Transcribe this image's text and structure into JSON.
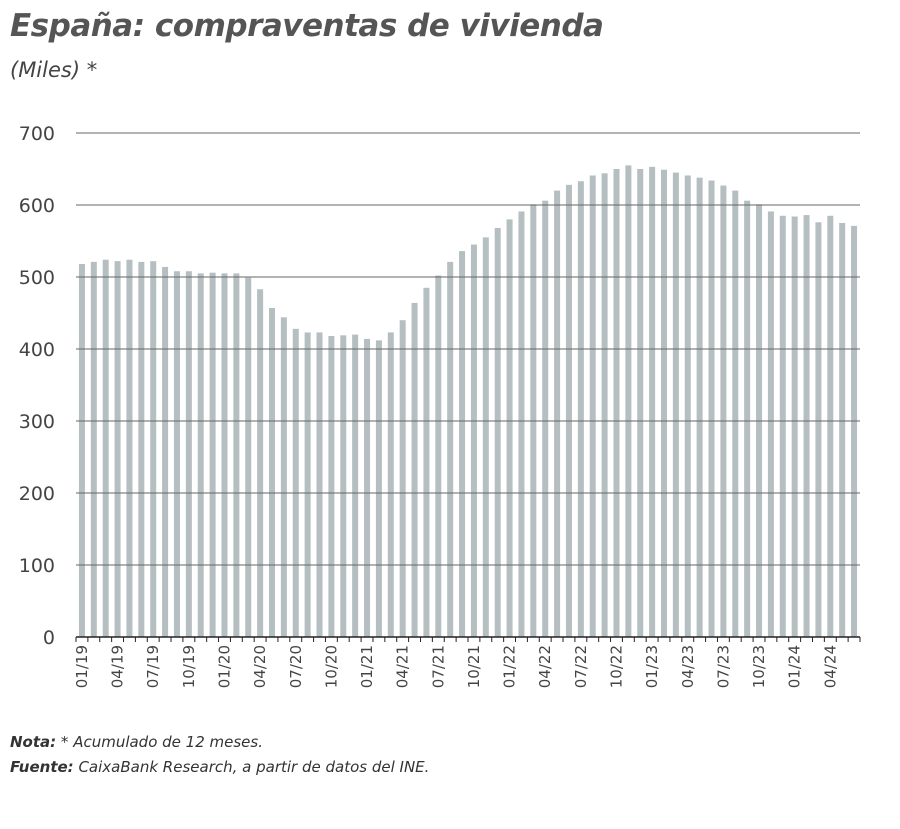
{
  "chart_data": {
    "type": "bar",
    "title": "España: compraventas de vivienda",
    "subtitle": "(Miles) *",
    "ylim": [
      0,
      700
    ],
    "yticks": [
      0,
      100,
      200,
      300,
      400,
      500,
      600,
      700
    ],
    "grid": true,
    "bar_color": "#b5bec0",
    "categories": [
      "01/19",
      "02/19",
      "03/19",
      "04/19",
      "05/19",
      "06/19",
      "07/19",
      "08/19",
      "09/19",
      "10/19",
      "11/19",
      "12/19",
      "01/20",
      "02/20",
      "03/20",
      "04/20",
      "05/20",
      "06/20",
      "07/20",
      "08/20",
      "09/20",
      "10/20",
      "11/20",
      "12/20",
      "01/21",
      "02/21",
      "03/21",
      "04/21",
      "05/21",
      "06/21",
      "07/21",
      "08/21",
      "09/21",
      "10/21",
      "11/21",
      "12/21",
      "01/22",
      "02/22",
      "03/22",
      "04/22",
      "05/22",
      "06/22",
      "07/22",
      "08/22",
      "09/22",
      "10/22",
      "11/22",
      "12/22",
      "01/23",
      "02/23",
      "03/23",
      "04/23",
      "05/23",
      "06/23",
      "07/23",
      "08/23",
      "09/23",
      "10/23",
      "11/23",
      "12/23",
      "01/24",
      "02/24",
      "03/24",
      "04/24",
      "05/24",
      "06/24"
    ],
    "xtick_labels": [
      "01/19",
      "04/19",
      "07/19",
      "10/19",
      "01/20",
      "04/20",
      "07/20",
      "10/20",
      "01/21",
      "04/21",
      "07/21",
      "10/21",
      "01/22",
      "04/22",
      "07/22",
      "10/22",
      "01/23",
      "04/23",
      "07/23",
      "10/23",
      "01/24",
      "04/24"
    ],
    "values": [
      518,
      521,
      524,
      522,
      524,
      521,
      522,
      514,
      508,
      508,
      505,
      506,
      505,
      505,
      499,
      483,
      457,
      444,
      428,
      423,
      423,
      418,
      419,
      420,
      414,
      412,
      423,
      440,
      464,
      485,
      502,
      521,
      536,
      545,
      555,
      568,
      580,
      591,
      601,
      606,
      620,
      628,
      633,
      641,
      644,
      650,
      655,
      650,
      653,
      649,
      645,
      641,
      638,
      634,
      627,
      620,
      606,
      601,
      591,
      585,
      584,
      586,
      576,
      585,
      575,
      571
    ]
  },
  "notes": {
    "nota_label": "Nota:",
    "nota_text": " * Acumulado de 12 meses.",
    "fuente_label": "Fuente:",
    "fuente_text": " CaixaBank Research, a partir de datos del INE."
  }
}
